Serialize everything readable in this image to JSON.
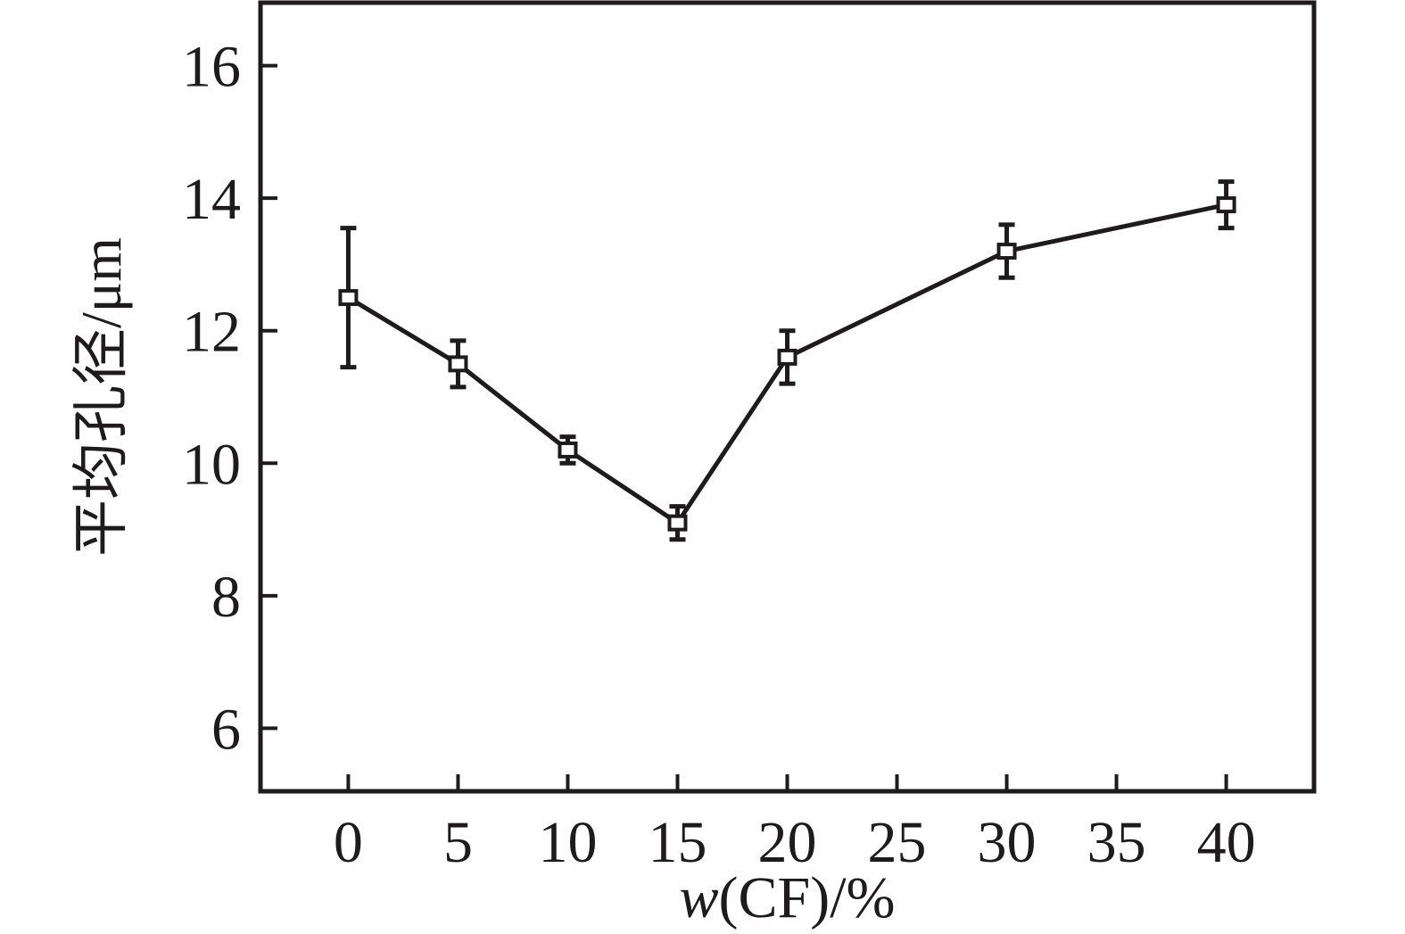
{
  "figure": {
    "background": "#ffffff",
    "stroke_color": "#1e1b1c"
  },
  "chart_data": {
    "type": "line",
    "title": "",
    "xlabel": "w(CF)/%",
    "xlabel_parts": [
      {
        "text": "w",
        "italic": true
      },
      {
        "text": "(CF)/%",
        "italic": false
      }
    ],
    "ylabel": "平均孔径/μm",
    "series": [
      {
        "name": "average-pore-diameter",
        "x": [
          0,
          5,
          10,
          15,
          20,
          30,
          40
        ],
        "y": [
          12.5,
          11.5,
          10.2,
          9.1,
          11.6,
          13.2,
          13.9
        ],
        "yerr": [
          1.05,
          0.35,
          0.2,
          0.25,
          0.4,
          0.4,
          0.35
        ],
        "marker": "open-square",
        "color": "#1e1b1c"
      }
    ],
    "x_ticks": [
      0,
      5,
      10,
      15,
      20,
      25,
      30,
      35,
      40
    ],
    "y_ticks": [
      6,
      8,
      10,
      12,
      14,
      16
    ],
    "xlim": [
      -4,
      44
    ],
    "ylim": [
      5.05,
      16.95
    ],
    "grid": false,
    "legend": null
  }
}
